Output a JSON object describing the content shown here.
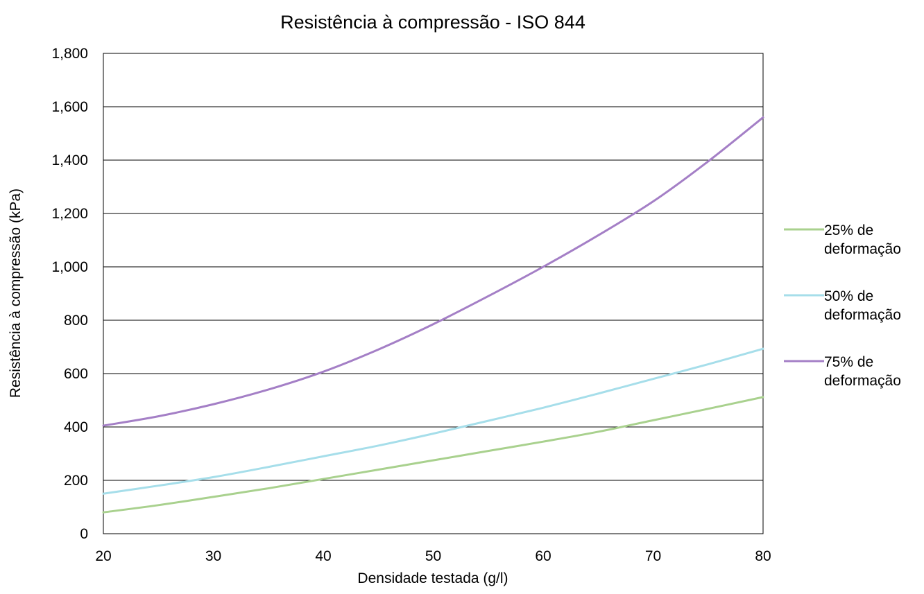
{
  "chart_data": {
    "type": "line",
    "title": "Resistência à compressão - ISO 844",
    "xlabel": "Densidade testada (g/l)",
    "ylabel": "Resistência à compressão (kPa)",
    "xlim": [
      20,
      80
    ],
    "ylim": [
      0,
      1800
    ],
    "x_ticks": [
      20,
      30,
      40,
      50,
      60,
      70,
      80
    ],
    "x_tick_labels": [
      "20",
      "30",
      "40",
      "50",
      "60",
      "70",
      "80"
    ],
    "y_ticks": [
      0,
      200,
      400,
      600,
      800,
      1000,
      1200,
      1400,
      1600,
      1800
    ],
    "y_tick_labels": [
      "0",
      "200",
      "400",
      "600",
      "800",
      "1,000",
      "1,200",
      "1,400",
      "1,600",
      "1,800"
    ],
    "grid": "horizontal",
    "legend_position": "right",
    "x": [
      20,
      25,
      30,
      35,
      40,
      45,
      50,
      55,
      60,
      65,
      70,
      75,
      80
    ],
    "series": [
      {
        "name": "25% de deformação",
        "legend_lines": [
          "25% de",
          "deformação"
        ],
        "color": "#A9D18E",
        "values": [
          80,
          107,
          138,
          170,
          205,
          240,
          275,
          310,
          345,
          382,
          425,
          468,
          512
        ]
      },
      {
        "name": "50% de deformação",
        "legend_lines": [
          "50% de",
          "deformação"
        ],
        "color": "#A6DEEA",
        "values": [
          150,
          180,
          212,
          250,
          290,
          330,
          375,
          423,
          472,
          525,
          580,
          635,
          693
        ]
      },
      {
        "name": "75% de deformação",
        "legend_lines": [
          "75% de",
          "deformação"
        ],
        "color": "#A47FC6",
        "values": [
          405,
          440,
          485,
          540,
          607,
          690,
          785,
          890,
          1000,
          1118,
          1245,
          1395,
          1560
        ]
      }
    ]
  }
}
